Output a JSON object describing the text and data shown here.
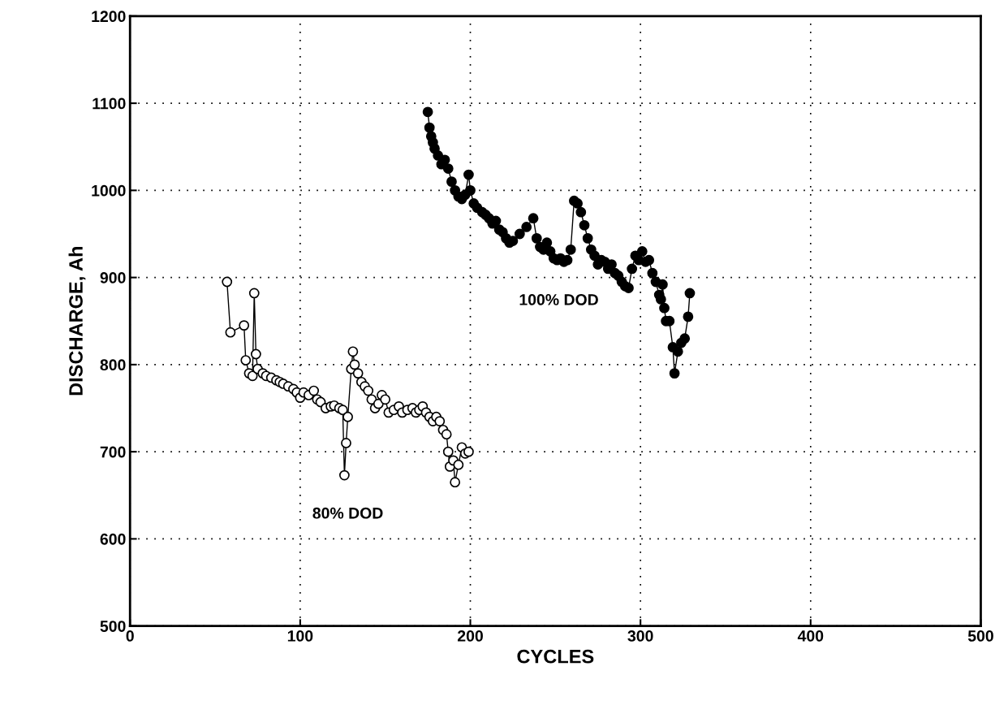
{
  "chart_data": {
    "type": "line",
    "xlabel": "CYCLES",
    "ylabel": "DISCHARGE, Ah",
    "xlim": [
      0,
      500
    ],
    "ylim": [
      500,
      1200
    ],
    "xticks": [
      0,
      100,
      200,
      300,
      400,
      500
    ],
    "yticks": [
      500,
      600,
      700,
      800,
      900,
      1000,
      1100,
      1200
    ],
    "grid": true,
    "line_style": "solid",
    "marker": "circle",
    "legend": false,
    "series": [
      {
        "name": "80% DOD",
        "color": "#ffffff",
        "x": [
          57,
          59,
          67,
          68,
          70,
          72,
          73,
          74,
          75,
          78,
          80,
          83,
          86,
          88,
          90,
          93,
          96,
          98,
          100,
          102,
          105,
          108,
          110,
          112,
          115,
          118,
          120,
          123,
          125,
          126,
          127,
          128,
          130,
          131,
          132,
          134,
          136,
          138,
          140,
          142,
          144,
          146,
          148,
          150,
          152,
          155,
          158,
          160,
          163,
          166,
          168,
          170,
          172,
          174,
          176,
          178,
          180,
          182,
          184,
          186,
          187,
          188,
          190,
          191,
          193,
          195,
          197,
          199
        ],
        "values": [
          895,
          837,
          845,
          805,
          790,
          787,
          882,
          812,
          795,
          790,
          787,
          785,
          782,
          780,
          778,
          775,
          772,
          768,
          762,
          768,
          765,
          770,
          760,
          757,
          750,
          752,
          753,
          750,
          748,
          673,
          710,
          740,
          795,
          815,
          800,
          790,
          780,
          775,
          770,
          760,
          750,
          755,
          765,
          760,
          745,
          748,
          752,
          745,
          748,
          750,
          745,
          748,
          752,
          745,
          740,
          735,
          740,
          735,
          725,
          720,
          700,
          683,
          690,
          665,
          685,
          705,
          698,
          700
        ]
      },
      {
        "name": "100% DOD",
        "color": "#000000",
        "x": [
          175,
          176,
          177,
          178,
          179,
          181,
          183,
          185,
          187,
          189,
          191,
          193,
          195,
          197,
          199,
          200,
          202,
          204,
          207,
          209,
          211,
          213,
          215,
          217,
          219,
          221,
          223,
          225,
          229,
          233,
          237,
          239,
          241,
          243,
          245,
          247,
          249,
          251,
          253,
          255,
          257,
          259,
          261,
          263,
          265,
          267,
          269,
          271,
          273,
          275,
          277,
          279,
          281,
          283,
          285,
          287,
          289,
          291,
          293,
          295,
          297,
          299,
          301,
          303,
          305,
          307,
          309,
          311,
          312,
          313,
          314,
          315,
          317,
          319,
          320,
          322,
          324,
          326,
          328,
          329
        ],
        "values": [
          1090,
          1072,
          1062,
          1055,
          1048,
          1040,
          1030,
          1035,
          1025,
          1010,
          1000,
          993,
          990,
          995,
          1018,
          1000,
          985,
          980,
          975,
          972,
          968,
          962,
          965,
          955,
          952,
          945,
          940,
          942,
          950,
          958,
          968,
          945,
          935,
          932,
          940,
          930,
          922,
          920,
          922,
          918,
          920,
          932,
          988,
          985,
          975,
          960,
          945,
          932,
          925,
          915,
          920,
          918,
          910,
          915,
          905,
          902,
          895,
          890,
          888,
          910,
          925,
          920,
          930,
          918,
          920,
          905,
          895,
          880,
          875,
          892,
          865,
          850,
          850,
          820,
          790,
          815,
          825,
          830,
          855,
          882
        ]
      }
    ]
  }
}
